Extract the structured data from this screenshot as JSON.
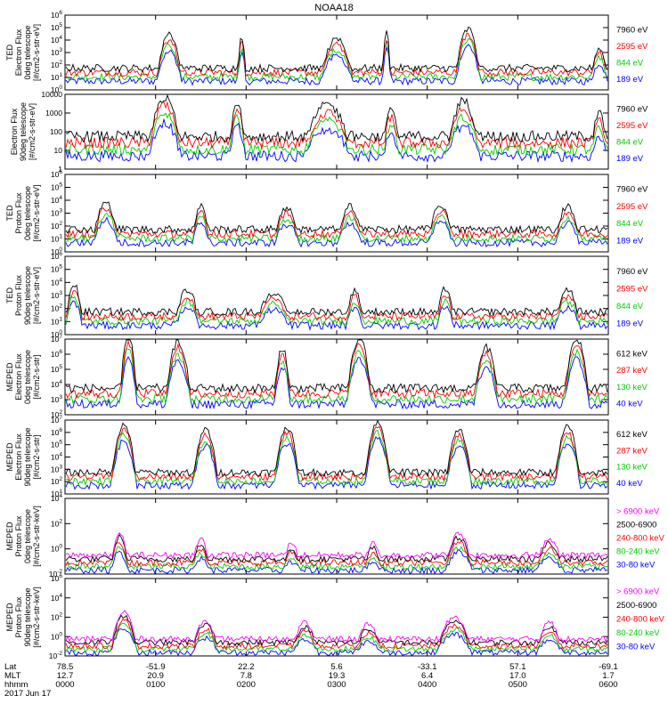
{
  "title": "NOAA18",
  "date_label": "2017 Jun 17",
  "bottom_axis": {
    "row_labels": [
      "Lat",
      "MLT",
      "hhmm"
    ],
    "columns": [
      {
        "lat": "78.5",
        "mlt": "12.7",
        "hhmm": "0000"
      },
      {
        "lat": "-51.9",
        "mlt": "20.9",
        "hhmm": "0100"
      },
      {
        "lat": "22.2",
        "mlt": "7.8",
        "hhmm": "0200"
      },
      {
        "lat": "5.6",
        "mlt": "19.3",
        "hhmm": "0300"
      },
      {
        "lat": "-33.1",
        "mlt": "6.4",
        "hhmm": "0400"
      },
      {
        "lat": "57.1",
        "mlt": "17.0",
        "hhmm": "0500"
      },
      {
        "lat": "-69.1",
        "mlt": "1.7",
        "hhmm": "0600"
      }
    ]
  },
  "chart_data": [
    {
      "type": "scatter",
      "ylabel_lines": [
        "TED",
        "Electron Flux",
        "0deg telescope",
        "[#/cm2-s-str-eV]"
      ],
      "scale": "log",
      "yticks": [
        "10^0",
        "10^1",
        "10^2",
        "10^3",
        "10^4",
        "10^5",
        "10^6"
      ],
      "ylim": [
        1,
        1000000
      ],
      "legend": [
        {
          "label": "7960 eV",
          "color": "#000000"
        },
        {
          "label": "2595 eV",
          "color": "#ff0000"
        },
        {
          "label": "844 eV",
          "color": "#00cc00"
        },
        {
          "label": "189 eV",
          "color": "#0000ff"
        }
      ],
      "bursts": [
        [
          1.0,
          1.3,
          4.2
        ],
        [
          1.9,
          2.0,
          4.0
        ],
        [
          2.8,
          3.2,
          3.8
        ],
        [
          3.5,
          3.6,
          4.4
        ],
        [
          4.3,
          4.6,
          4.6
        ],
        [
          5.8,
          6.0,
          3.2
        ]
      ]
    },
    {
      "type": "scatter",
      "ylabel_lines": [
        "Electron Flux",
        "90deg telescope",
        "[#/cm2-s-str-eV]"
      ],
      "scale": "log",
      "yticks": [
        "1",
        "10",
        "100",
        "1000",
        "10000"
      ],
      "ylim": [
        1,
        10000
      ],
      "legend": [
        {
          "label": "7960 eV",
          "color": "#000000"
        },
        {
          "label": "2595 eV",
          "color": "#ff0000"
        },
        {
          "label": "844 eV",
          "color": "#00cc00"
        },
        {
          "label": "189 eV",
          "color": "#0000ff"
        }
      ],
      "bursts": [
        [
          0.9,
          1.3,
          3.6
        ],
        [
          1.8,
          2.0,
          3.4
        ],
        [
          2.6,
          3.2,
          3.2
        ],
        [
          3.5,
          3.7,
          3.0
        ],
        [
          4.2,
          4.6,
          3.4
        ],
        [
          5.8,
          6.0,
          2.8
        ]
      ]
    },
    {
      "type": "scatter",
      "ylabel_lines": [
        "TED",
        "Proton Flux",
        "0deg telescope",
        "[#/cm2-s-str-eV]"
      ],
      "scale": "log",
      "yticks": [
        "10^0",
        "10^1",
        "10^2",
        "10^3",
        "10^4",
        "10^5",
        "10^6"
      ],
      "ylim": [
        1,
        1000000
      ],
      "legend": [
        {
          "label": "7960 eV",
          "color": "#000000"
        },
        {
          "label": "2595 eV",
          "color": "#ff0000"
        },
        {
          "label": "844 eV",
          "color": "#00cc00"
        },
        {
          "label": "189 eV",
          "color": "#0000ff"
        }
      ],
      "bursts": [
        [
          0.3,
          0.6,
          3.6
        ],
        [
          1.4,
          1.6,
          3.4
        ],
        [
          2.3,
          2.6,
          3.2
        ],
        [
          3.0,
          3.3,
          3.3
        ],
        [
          4.0,
          4.3,
          3.4
        ],
        [
          5.4,
          5.7,
          3.3
        ]
      ]
    },
    {
      "type": "scatter",
      "ylabel_lines": [
        "TED",
        "Proton Flux",
        "90deg telescope",
        "[#/cm2-s-str-eV]"
      ],
      "scale": "log",
      "yticks": [
        "10^0",
        "10^1",
        "10^2",
        "10^3",
        "10^4",
        "10^5",
        "10^6"
      ],
      "ylim": [
        1,
        1000000
      ],
      "legend": [
        {
          "label": "7960 eV",
          "color": "#000000"
        },
        {
          "label": "2595 eV",
          "color": "#ff0000"
        },
        {
          "label": "844 eV",
          "color": "#00cc00"
        },
        {
          "label": "189 eV",
          "color": "#0000ff"
        }
      ],
      "bursts": [
        [
          0.0,
          0.2,
          3.6
        ],
        [
          1.2,
          1.5,
          3.2
        ],
        [
          2.1,
          2.5,
          3.0
        ],
        [
          3.1,
          3.3,
          3.2
        ],
        [
          4.1,
          4.3,
          3.3
        ],
        [
          5.4,
          5.7,
          3.2
        ]
      ]
    },
    {
      "type": "line",
      "ylabel_lines": [
        "MEPED",
        "Electron Flux",
        "0deg telescope",
        "[#/cm2-s-str]"
      ],
      "scale": "log",
      "yticks": [
        "10^2",
        "10^3",
        "10^4",
        "10^5",
        "10^6",
        "10^7"
      ],
      "ylim": [
        100,
        10000000
      ],
      "legend": [
        {
          "label": "612 keV",
          "color": "#000000"
        },
        {
          "label": "287 keV",
          "color": "#ff0000"
        },
        {
          "label": "130 keV",
          "color": "#00cc00"
        },
        {
          "label": "40 keV",
          "color": "#0000ff"
        }
      ],
      "bursts": [
        [
          0.6,
          0.8,
          5.0
        ],
        [
          1.1,
          1.4,
          4.6
        ],
        [
          2.3,
          2.5,
          4.2
        ],
        [
          3.1,
          3.4,
          4.8
        ],
        [
          4.5,
          4.8,
          4.2
        ],
        [
          5.5,
          5.8,
          4.8
        ]
      ]
    },
    {
      "type": "line",
      "ylabel_lines": [
        "MEPED",
        "Electron Flux",
        "90deg telescope",
        "[#/cm2-s-str]"
      ],
      "scale": "log",
      "yticks": [
        "10^1",
        "10^2",
        "10^3",
        "10^4",
        "10^5",
        "10^6",
        "10^7"
      ],
      "ylim": [
        10,
        10000000
      ],
      "legend": [
        {
          "label": "612 keV",
          "color": "#000000"
        },
        {
          "label": "287 keV",
          "color": "#ff0000"
        },
        {
          "label": "130 keV",
          "color": "#00cc00"
        },
        {
          "label": "40 keV",
          "color": "#0000ff"
        }
      ],
      "bursts": [
        [
          0.5,
          0.8,
          5.4
        ],
        [
          1.4,
          1.7,
          5.0
        ],
        [
          2.3,
          2.6,
          5.2
        ],
        [
          3.3,
          3.6,
          5.6
        ],
        [
          4.2,
          4.5,
          5.0
        ],
        [
          5.4,
          5.7,
          5.2
        ]
      ]
    },
    {
      "type": "line",
      "ylabel_lines": [
        "MEPED",
        "Proton Flux",
        "0deg telescope",
        "[#/cm2-s-str-keV]"
      ],
      "scale": "log",
      "yticks": [
        "10^-2",
        "10^0",
        "10^2",
        "10^4"
      ],
      "ylim": [
        0.01,
        100000
      ],
      "legend": [
        {
          "label": "> 6900 keV",
          "color": "#ff00ff"
        },
        {
          "label": "2500-6900",
          "color": "#000000"
        },
        {
          "label": "240-800 keV",
          "color": "#ff0000"
        },
        {
          "label": "80-240 keV",
          "color": "#00cc00"
        },
        {
          "label": "30-80 keV",
          "color": "#0000ff"
        }
      ],
      "bursts": [
        [
          0.5,
          0.7,
          3.6
        ],
        [
          1.4,
          1.6,
          3.0
        ],
        [
          2.4,
          2.6,
          2.6
        ],
        [
          3.3,
          3.5,
          2.6
        ],
        [
          4.2,
          4.5,
          3.6
        ],
        [
          5.2,
          5.5,
          3.0
        ]
      ]
    },
    {
      "type": "line",
      "ylabel_lines": [
        "MEPED",
        "Proton Flux",
        "90deg telescope",
        "[#/cm2-s-str-keV]"
      ],
      "scale": "log",
      "yticks": [
        "10^-2",
        "10^0",
        "10^2",
        "10^4",
        "10^6"
      ],
      "ylim": [
        0.01,
        1000000
      ],
      "legend": [
        {
          "label": "> 6900 keV",
          "color": "#ff00ff"
        },
        {
          "label": "2500-6900",
          "color": "#000000"
        },
        {
          "label": "240-800 keV",
          "color": "#ff0000"
        },
        {
          "label": "80-240 keV",
          "color": "#00cc00"
        },
        {
          "label": "30-80 keV",
          "color": "#0000ff"
        }
      ],
      "bursts": [
        [
          0.5,
          0.8,
          4.4
        ],
        [
          1.4,
          1.7,
          3.4
        ],
        [
          2.5,
          2.8,
          3.2
        ],
        [
          3.2,
          3.5,
          3.0
        ],
        [
          4.1,
          4.5,
          3.8
        ],
        [
          5.2,
          5.5,
          3.2
        ]
      ]
    }
  ]
}
